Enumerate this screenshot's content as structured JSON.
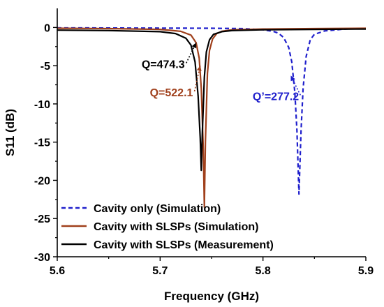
{
  "chart_data": {
    "type": "line",
    "title": "",
    "xlabel": "Frequency (GHz)",
    "ylabel": "S11 (dB)",
    "xlim": [
      5.6,
      5.9
    ],
    "ylim": [
      -30,
      2.5
    ],
    "x_ticks": [
      "5.6",
      "5.7",
      "5.8",
      "5.9"
    ],
    "y_ticks": [
      "0",
      "-5",
      "-10",
      "-15",
      "-20",
      "-25",
      "-30"
    ],
    "grid": false,
    "legend_position": "bottom-left",
    "series": [
      {
        "name": "Cavity only (Simulation)",
        "color": "#1f1fcc",
        "style": "dashed",
        "x": [
          5.6,
          5.7,
          5.75,
          5.78,
          5.8,
          5.81,
          5.815,
          5.82,
          5.825,
          5.828,
          5.831,
          5.833,
          5.835,
          5.837,
          5.839,
          5.842,
          5.846,
          5.85,
          5.86,
          5.88,
          5.9
        ],
        "y": [
          -0.05,
          -0.08,
          -0.1,
          -0.15,
          -0.3,
          -0.5,
          -0.75,
          -1.3,
          -2.6,
          -4.5,
          -8.5,
          -13.5,
          -21.8,
          -13.5,
          -8.0,
          -3.8,
          -1.6,
          -0.9,
          -0.45,
          -0.2,
          -0.12
        ]
      },
      {
        "name": "Cavity with SLSPs (Simulation)",
        "color": "#a0401c",
        "style": "solid",
        "x": [
          5.6,
          5.65,
          5.7,
          5.72,
          5.73,
          5.735,
          5.738,
          5.74,
          5.742,
          5.743,
          5.744,
          5.746,
          5.748,
          5.751,
          5.755,
          5.76,
          5.77,
          5.8,
          5.85,
          5.9
        ],
        "y": [
          -0.1,
          -0.15,
          -0.25,
          -0.5,
          -1.0,
          -2.0,
          -4.0,
          -8.0,
          -16.0,
          -23.5,
          -15.0,
          -6.0,
          -3.0,
          -1.5,
          -0.8,
          -0.5,
          -0.3,
          -0.2,
          -0.15,
          -0.1
        ]
      },
      {
        "name": "Cavity with SLSPs (Measurement)",
        "color": "#000000",
        "style": "solid",
        "x": [
          5.6,
          5.65,
          5.7,
          5.715,
          5.725,
          5.73,
          5.734,
          5.737,
          5.739,
          5.74,
          5.741,
          5.743,
          5.745,
          5.748,
          5.752,
          5.76,
          5.77,
          5.8,
          5.85,
          5.9
        ],
        "y": [
          -0.35,
          -0.4,
          -0.55,
          -0.8,
          -1.4,
          -2.3,
          -4.5,
          -9.0,
          -14.5,
          -18.7,
          -14.0,
          -6.5,
          -3.2,
          -1.6,
          -0.9,
          -0.55,
          -0.4,
          -0.3,
          -0.25,
          -0.2
        ]
      }
    ],
    "annotations": [
      {
        "text": "Q=474.3",
        "color": "#000000",
        "x": 5.682,
        "y": -5.3,
        "arrow_to_x": 5.735,
        "arrow_to_y": -2.0
      },
      {
        "text": "Q=522.1",
        "color": "#a0401c",
        "x": 5.69,
        "y": -9.0,
        "arrow_to_x": 5.739,
        "arrow_to_y": -5.0
      },
      {
        "text": "Q’=277.2",
        "color": "#1f1fcc",
        "x": 5.79,
        "y": -9.5,
        "arrow_to_x": 5.827,
        "arrow_to_y": -6.3
      }
    ]
  }
}
